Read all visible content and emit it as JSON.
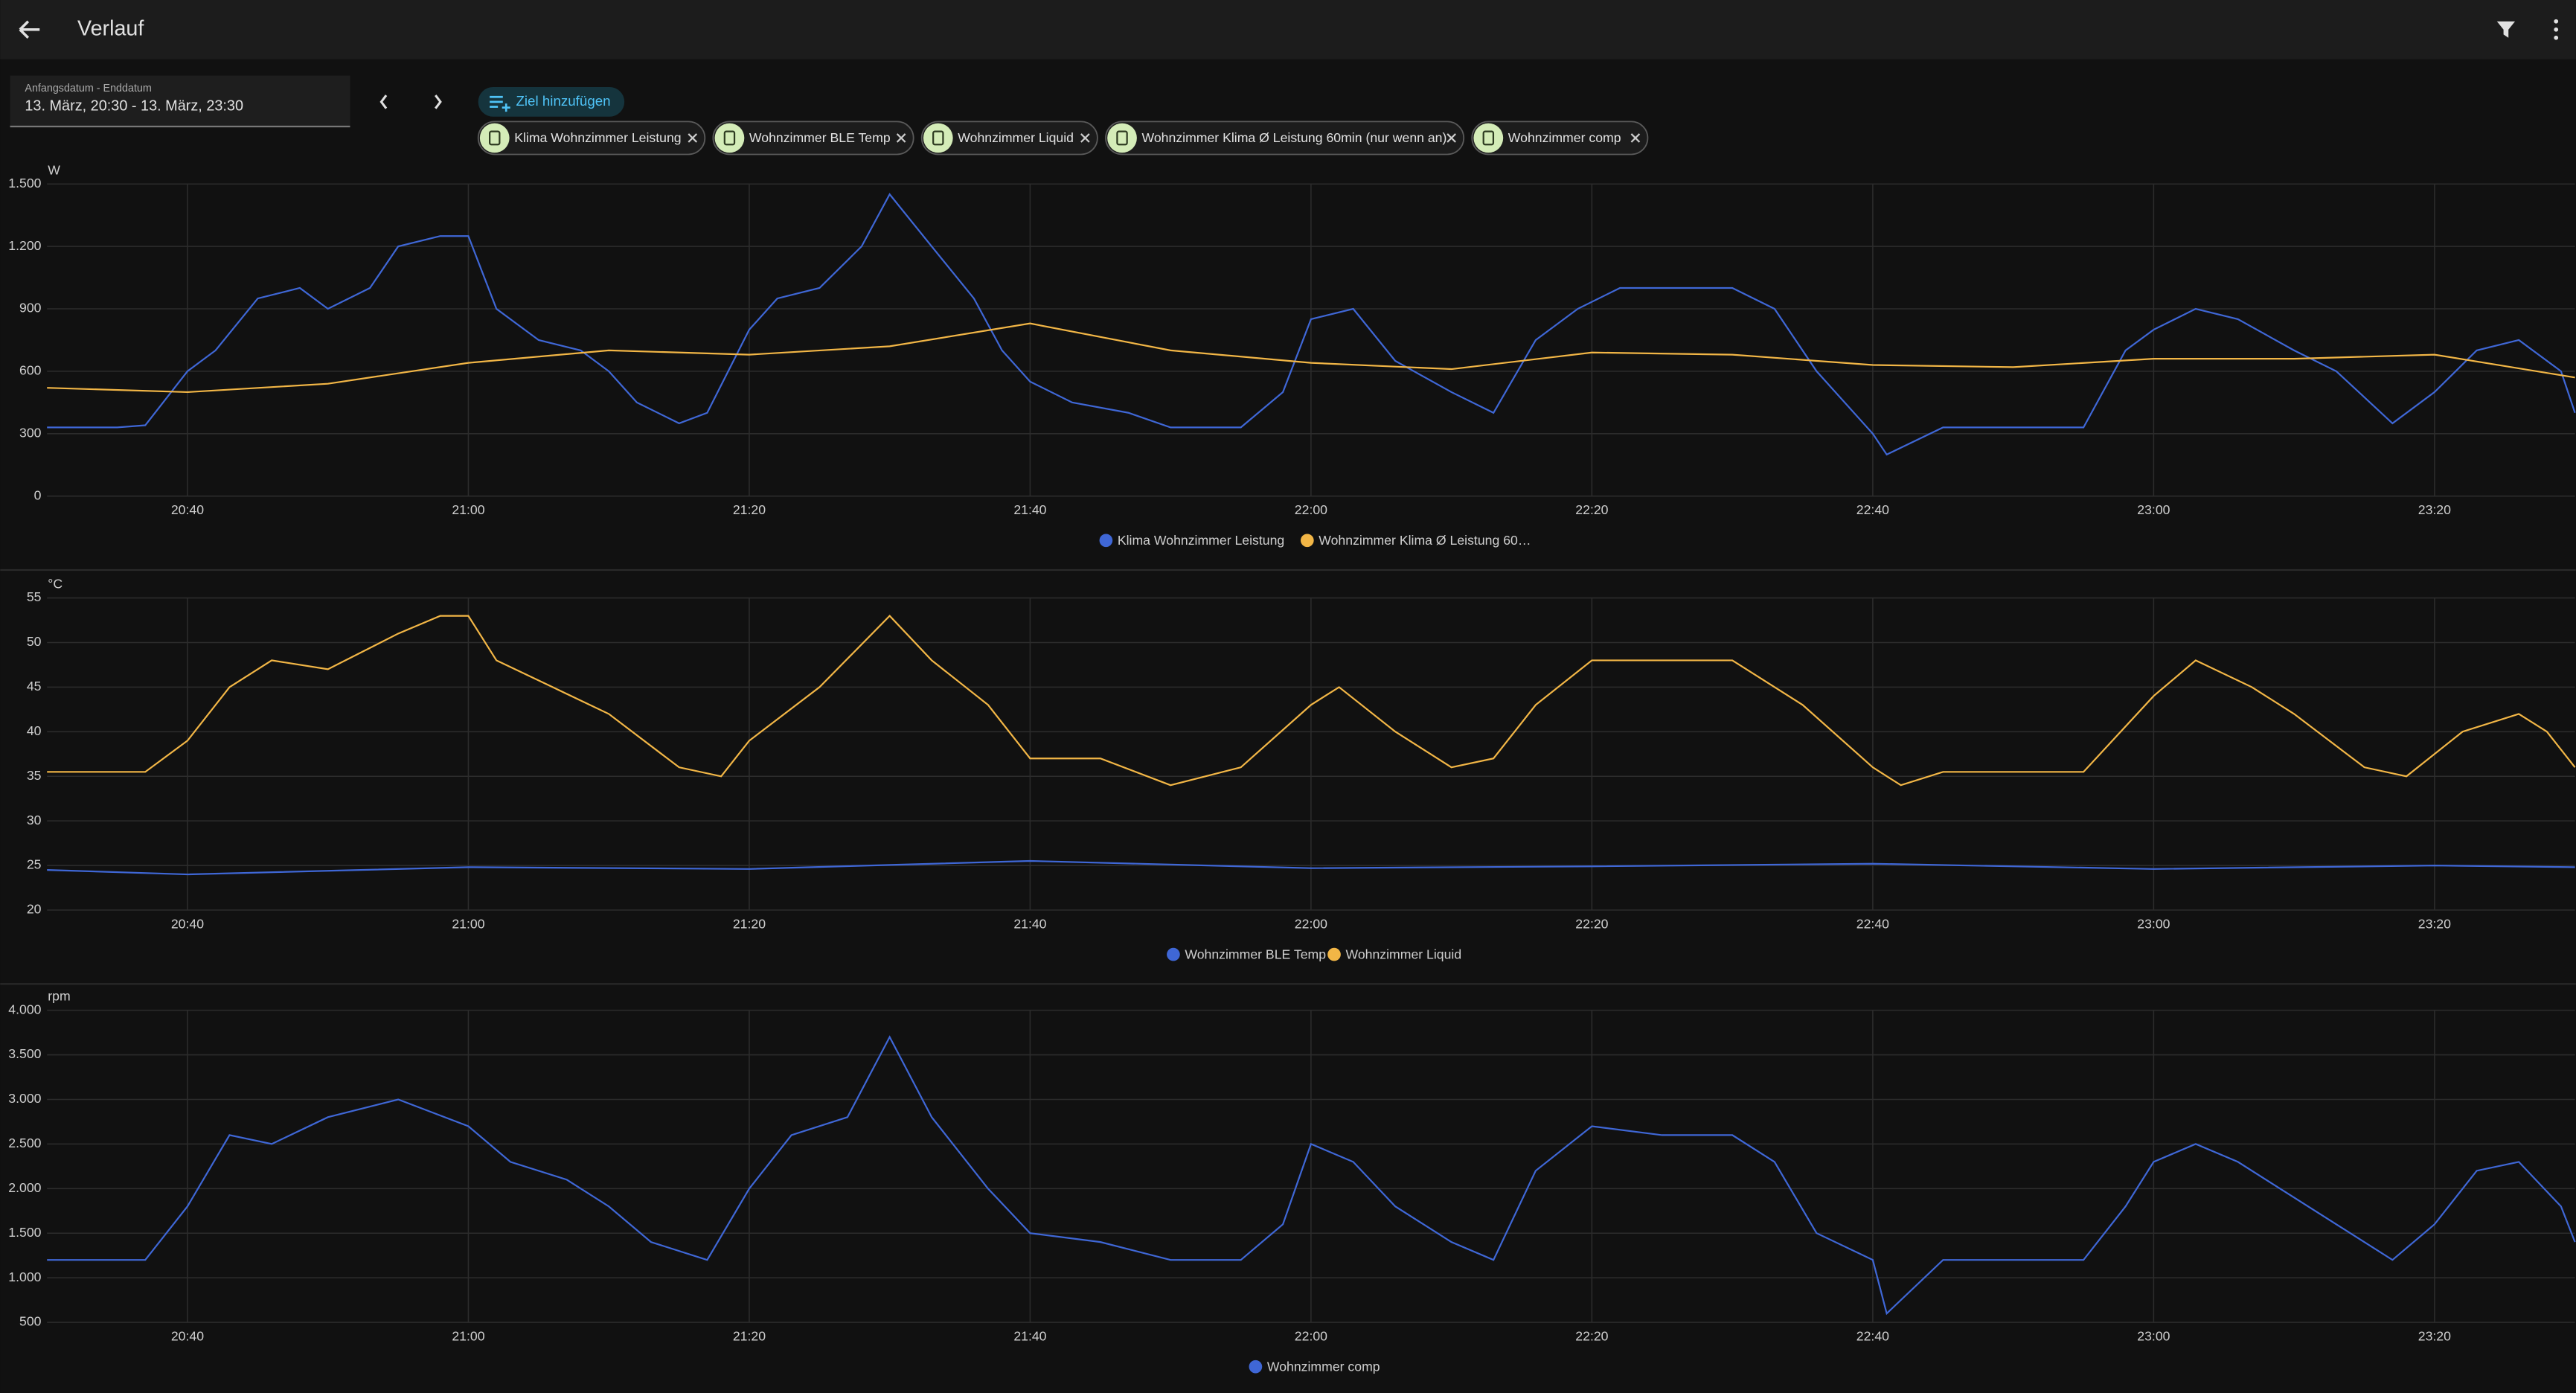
{
  "header": {
    "title": "Verlauf"
  },
  "date_range": {
    "label": "Anfangsdatum - Enddatum",
    "value": "13. März, 20:30 - 13. März, 23:30"
  },
  "add_target": "Ziel hinzufügen",
  "chips": [
    "Klima Wohnzimmer Leistung",
    "Wohnzimmer BLE Temp",
    "Wohnzimmer Liquid",
    "Wohnzimmer Klima Ø Leistung 60min (nur wenn an)",
    "Wohnzimmer comp"
  ],
  "chart_data": [
    {
      "type": "line",
      "y_unit": "W",
      "xlim": [
        "20:30",
        "23:30"
      ],
      "xticks": [
        "20:40",
        "21:00",
        "21:20",
        "21:40",
        "22:00",
        "22:20",
        "22:40",
        "23:00",
        "23:20"
      ],
      "ylim": [
        0,
        1500
      ],
      "yticks": [
        0,
        300,
        600,
        900,
        {
          "value": 1200,
          "label": "1.200"
        },
        {
          "value": 1500,
          "label": "1.500"
        }
      ],
      "grid": true,
      "series": [
        {
          "name": "Klima Wohnzimmer Leistung",
          "color": "#3f67d6",
          "x": [
            "20:30",
            "20:35",
            "20:37",
            "20:40",
            "20:42",
            "20:45",
            "20:48",
            "20:50",
            "20:53",
            "20:55",
            "20:58",
            "21:00",
            "21:02",
            "21:05",
            "21:08",
            "21:10",
            "21:12",
            "21:15",
            "21:17",
            "21:20",
            "21:22",
            "21:25",
            "21:28",
            "21:30",
            "21:33",
            "21:36",
            "21:38",
            "21:40",
            "21:43",
            "21:47",
            "21:50",
            "21:55",
            "21:58",
            "22:00",
            "22:03",
            "22:06",
            "22:10",
            "22:13",
            "22:16",
            "22:19",
            "22:22",
            "22:25",
            "22:30",
            "22:33",
            "22:36",
            "22:40",
            "22:41",
            "22:45",
            "22:50",
            "22:55",
            "22:58",
            "23:00",
            "23:03",
            "23:06",
            "23:10",
            "23:13",
            "23:17",
            "23:20",
            "23:23",
            "23:26",
            "23:29",
            "23:30"
          ],
          "values": [
            330,
            330,
            340,
            600,
            700,
            950,
            1000,
            900,
            1000,
            1200,
            1250,
            1250,
            900,
            750,
            700,
            600,
            450,
            350,
            400,
            800,
            950,
            1000,
            1200,
            1450,
            1200,
            950,
            700,
            550,
            450,
            400,
            330,
            330,
            500,
            850,
            900,
            650,
            500,
            400,
            750,
            900,
            1000,
            1000,
            1000,
            900,
            600,
            300,
            200,
            330,
            330,
            330,
            700,
            800,
            900,
            850,
            700,
            600,
            350,
            500,
            700,
            750,
            600,
            400
          ]
        },
        {
          "name": "Wohnzimmer Klima Ø Leistung 60…",
          "color": "#f2b646",
          "x": [
            "20:30",
            "20:40",
            "20:50",
            "21:00",
            "21:10",
            "21:20",
            "21:30",
            "21:40",
            "21:50",
            "22:00",
            "22:10",
            "22:20",
            "22:30",
            "22:40",
            "22:50",
            "23:00",
            "23:10",
            "23:20",
            "23:30"
          ],
          "values": [
            520,
            500,
            540,
            640,
            700,
            680,
            720,
            830,
            700,
            640,
            610,
            690,
            680,
            630,
            620,
            660,
            660,
            680,
            570
          ]
        }
      ]
    },
    {
      "type": "line",
      "y_unit": "°C",
      "xlim": [
        "20:30",
        "23:30"
      ],
      "xticks": [
        "20:40",
        "21:00",
        "21:20",
        "21:40",
        "22:00",
        "22:20",
        "22:40",
        "23:00",
        "23:20"
      ],
      "ylim": [
        20,
        55
      ],
      "yticks": [
        20,
        25,
        30,
        35,
        40,
        45,
        50,
        55
      ],
      "grid": true,
      "series": [
        {
          "name": "Wohnzimmer BLE Temp",
          "color": "#3f67d6",
          "x": [
            "20:30",
            "20:40",
            "21:00",
            "21:20",
            "21:40",
            "22:00",
            "22:20",
            "22:40",
            "23:00",
            "23:20",
            "23:30"
          ],
          "values": [
            24.5,
            24,
            24.8,
            24.6,
            25.5,
            24.7,
            24.9,
            25.2,
            24.6,
            25,
            24.8
          ]
        },
        {
          "name": "Wohnzimmer Liquid",
          "color": "#f2b646",
          "x": [
            "20:30",
            "20:37",
            "20:40",
            "20:43",
            "20:46",
            "20:50",
            "20:55",
            "20:58",
            "21:00",
            "21:02",
            "21:06",
            "21:10",
            "21:15",
            "21:18",
            "21:20",
            "21:25",
            "21:30",
            "21:33",
            "21:37",
            "21:40",
            "21:45",
            "21:50",
            "21:55",
            "22:00",
            "22:02",
            "22:06",
            "22:10",
            "22:13",
            "22:16",
            "22:20",
            "22:25",
            "22:30",
            "22:35",
            "22:40",
            "22:42",
            "22:45",
            "22:55",
            "23:00",
            "23:03",
            "23:07",
            "23:10",
            "23:15",
            "23:18",
            "23:22",
            "23:26",
            "23:28",
            "23:30"
          ],
          "values": [
            35.5,
            35.5,
            39,
            45,
            48,
            47,
            51,
            53,
            53,
            48,
            45,
            42,
            36,
            35,
            39,
            45,
            53,
            48,
            43,
            37,
            37,
            34,
            36,
            43,
            45,
            40,
            36,
            37,
            43,
            48,
            48,
            48,
            43,
            36,
            34,
            35.5,
            35.5,
            44,
            48,
            45,
            42,
            36,
            35,
            40,
            42,
            40,
            36
          ]
        }
      ]
    },
    {
      "type": "line",
      "y_unit": "rpm",
      "xlim": [
        "20:30",
        "23:30"
      ],
      "xticks": [
        "20:40",
        "21:00",
        "21:20",
        "21:40",
        "22:00",
        "22:20",
        "22:40",
        "23:00",
        "23:20"
      ],
      "ylim": [
        500,
        4000
      ],
      "yticks": [
        500,
        {
          "value": 1000,
          "label": "1.000"
        },
        {
          "value": 1500,
          "label": "1.500"
        },
        {
          "value": 2000,
          "label": "2.000"
        },
        {
          "value": 2500,
          "label": "2.500"
        },
        {
          "value": 3000,
          "label": "3.000"
        },
        {
          "value": 3500,
          "label": "3.500"
        },
        {
          "value": 4000,
          "label": "4.000"
        }
      ],
      "grid": true,
      "series": [
        {
          "name": "Wohnzimmer comp",
          "color": "#3f67d6",
          "x": [
            "20:30",
            "20:37",
            "20:40",
            "20:43",
            "20:46",
            "20:50",
            "20:55",
            "21:00",
            "21:03",
            "21:07",
            "21:10",
            "21:13",
            "21:17",
            "21:20",
            "21:23",
            "21:27",
            "21:30",
            "21:33",
            "21:37",
            "21:40",
            "21:45",
            "21:50",
            "21:55",
            "21:58",
            "22:00",
            "22:03",
            "22:06",
            "22:10",
            "22:13",
            "22:16",
            "22:20",
            "22:25",
            "22:30",
            "22:33",
            "22:36",
            "22:40",
            "22:41",
            "22:45",
            "22:55",
            "22:58",
            "23:00",
            "23:03",
            "23:06",
            "23:10",
            "23:13",
            "23:17",
            "23:20",
            "23:23",
            "23:26",
            "23:29",
            "23:30"
          ],
          "values": [
            1200,
            1200,
            1800,
            2600,
            2500,
            2800,
            3000,
            2700,
            2300,
            2100,
            1800,
            1400,
            1200,
            2000,
            2600,
            2800,
            3700,
            2800,
            2000,
            1500,
            1400,
            1200,
            1200,
            1600,
            2500,
            2300,
            1800,
            1400,
            1200,
            2200,
            2700,
            2600,
            2600,
            2300,
            1500,
            1200,
            600,
            1200,
            1200,
            1800,
            2300,
            2500,
            2300,
            1900,
            1600,
            1200,
            1600,
            2200,
            2300,
            1800,
            1400
          ]
        }
      ]
    }
  ]
}
